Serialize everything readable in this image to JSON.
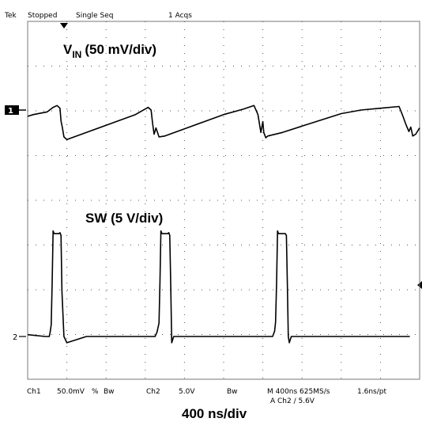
{
  "status_bar": {
    "brand": "Tek",
    "acq_state": "Stopped",
    "mode": "Single Seq",
    "acq_count": "1 Acqs"
  },
  "channel_markers": {
    "ch1": "1",
    "ch2": "2"
  },
  "annotations": {
    "vin_main": "V",
    "vin_sub": "IN",
    "vin_scale": "(50 mV/div)",
    "sw_label": "SW (5 V/div)",
    "timebase": "400 ns/div"
  },
  "footer": {
    "ch1_label": "Ch1",
    "ch1_scale": "50.0mV",
    "ch1_coupling": "%",
    "ch1_bw": "Bw",
    "ch2_label": "Ch2",
    "ch2_scale": "5.0V",
    "ch2_bw": "Bw",
    "horizontal": "M 400ns 625MS/s",
    "sample_interval": "1.6ns/pt",
    "trigger": "A  Ch2  ∕  5.6V"
  },
  "colors": {
    "trace": "#000000",
    "grid": "#555555",
    "background": "#ffffff"
  },
  "chart_data": {
    "type": "line",
    "x_unit": "ns",
    "x_per_div": 400,
    "x_divisions": 10,
    "y_divisions": 8,
    "grid": true,
    "series": [
      {
        "name": "VIN",
        "unit": "mV",
        "volts_per_div": 50,
        "x": [
          0,
          60,
          200,
          260,
          300,
          330,
          340,
          355,
          370,
          400,
          600,
          800,
          1000,
          1100,
          1230,
          1260,
          1275,
          1290,
          1310,
          1340,
          1400,
          1600,
          1800,
          2000,
          2200,
          2310,
          2350,
          2380,
          2400,
          2410,
          2430,
          2450,
          2600,
          2800,
          3000,
          3200,
          3400,
          3600,
          3790,
          3830,
          3860,
          3890,
          3910,
          3930,
          3960,
          4000
        ],
        "values": [
          -7,
          -5,
          -2,
          3,
          5,
          2,
          -12,
          -20,
          -30,
          -33,
          -25,
          -17,
          -9,
          -5,
          3,
          0,
          -15,
          -27,
          -20,
          -30,
          -29,
          -21,
          -13,
          -5,
          1,
          5,
          -5,
          -25,
          -13,
          -25,
          -31,
          -29,
          -25,
          -18,
          -11,
          -4,
          0,
          2,
          4,
          -7,
          -16,
          -24,
          -19,
          -29,
          -27,
          -20
        ]
      },
      {
        "name": "SW",
        "unit": "V",
        "volts_per_div": 5,
        "x": [
          0,
          1,
          180,
          200,
          220,
          230,
          240,
          250,
          260,
          270,
          280,
          290,
          300,
          310,
          320,
          330,
          340,
          350,
          370,
          400,
          600,
          800,
          1000,
          1300,
          1320,
          1340,
          1350,
          1360,
          1370,
          1380,
          1390,
          1400,
          1410,
          1430,
          1440,
          1450,
          1460,
          1470,
          1490,
          1600,
          1800,
          2000,
          2200,
          2400,
          2500,
          2520,
          2530,
          2540,
          2550,
          2560,
          2570,
          2580,
          2600,
          2620,
          2630,
          2640,
          2650,
          2660,
          2670,
          2690,
          2800,
          3000,
          3200,
          3400,
          3600,
          3800,
          3900
        ],
        "values": [
          0.2,
          0.2,
          0,
          0,
          0,
          0.5,
          1.3,
          6,
          11.8,
          11.5,
          11.5,
          11.5,
          11.5,
          11.5,
          11.5,
          11.6,
          11.3,
          5,
          0,
          -0.7,
          0,
          0,
          0,
          0,
          0.5,
          1.5,
          6,
          11.8,
          11.5,
          11.5,
          11.5,
          11.5,
          11.5,
          11.5,
          11.6,
          11.3,
          6,
          -0.7,
          0,
          0,
          0,
          0,
          0,
          0,
          0,
          0.6,
          1.6,
          6,
          11.8,
          11.5,
          11.5,
          11.5,
          11.5,
          11.5,
          11.5,
          11.3,
          6,
          0,
          -0.7,
          0,
          0,
          0,
          0,
          0,
          0,
          0,
          0
        ]
      }
    ]
  }
}
